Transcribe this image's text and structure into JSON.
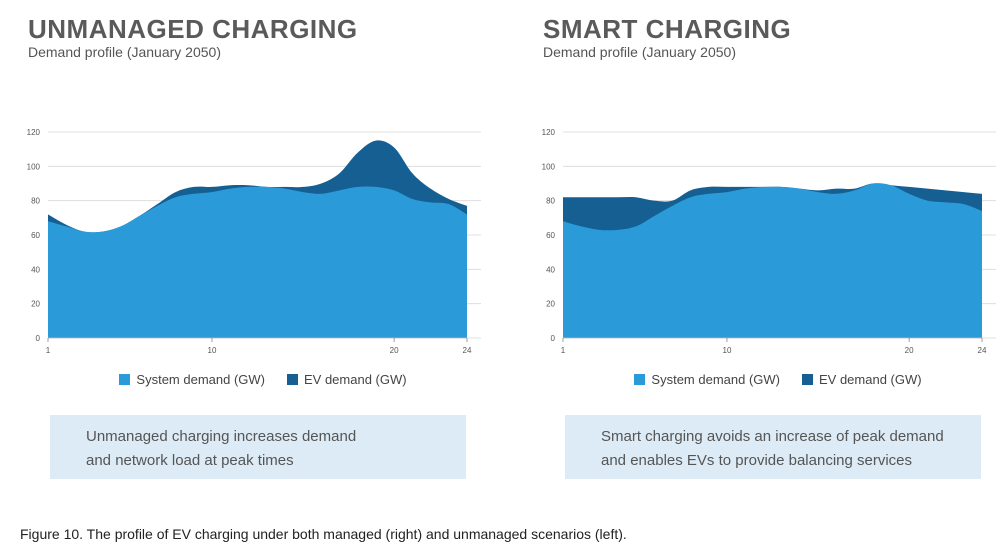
{
  "colors": {
    "system_demand": "#2b9ad9",
    "ev_demand": "#155f93",
    "gridline": "#d9d9d9",
    "note_background": "#dcebf5"
  },
  "panels": [
    {
      "title": "UNMANAGED CHARGING",
      "subtitle": "Demand profile (January 2050)",
      "note": [
        "Unmanaged charging increases demand",
        "and network load at peak times"
      ]
    },
    {
      "title": "SMART CHARGING",
      "subtitle": "Demand profile (January 2050)",
      "note": [
        "Smart charging avoids an increase of peak demand",
        "and enables EVs to provide balancing services"
      ]
    }
  ],
  "legend": {
    "system_label": "System demand (GW)",
    "ev_label": "EV demand (GW)"
  },
  "caption": {
    "label": "Figure 10.",
    "text": " The profile of EV charging under both managed (right) and unmanaged scenarios (left)."
  },
  "chart_data": [
    {
      "type": "area",
      "stacked": true,
      "title": "UNMANAGED CHARGING",
      "xlabel": "",
      "ylabel": "",
      "x": [
        1,
        2,
        3,
        4,
        5,
        6,
        7,
        8,
        9,
        10,
        11,
        12,
        13,
        14,
        15,
        16,
        17,
        18,
        19,
        20,
        21,
        22,
        23,
        24
      ],
      "xticks": [
        1,
        10,
        20,
        24
      ],
      "yticks": [
        0,
        20,
        40,
        60,
        80,
        100,
        120
      ],
      "xlim": [
        1,
        24
      ],
      "ylim": [
        0,
        120
      ],
      "grid": true,
      "legend_position": "bottom",
      "series": [
        {
          "name": "System demand (GW)",
          "values": [
            68,
            65,
            62,
            62,
            65,
            71,
            77,
            82,
            84,
            85,
            87,
            88,
            88,
            87,
            85,
            84,
            86,
            88,
            88,
            86,
            81,
            79,
            78,
            72
          ]
        },
        {
          "name": "EV demand (GW)",
          "values": [
            4,
            1,
            0,
            0,
            0,
            0,
            1,
            3,
            4,
            3,
            2,
            1,
            0,
            1,
            3,
            6,
            10,
            20,
            27,
            25,
            15,
            8,
            3,
            5
          ]
        }
      ]
    },
    {
      "type": "area",
      "stacked": true,
      "title": "SMART CHARGING",
      "xlabel": "",
      "ylabel": "",
      "x": [
        1,
        2,
        3,
        4,
        5,
        6,
        7,
        8,
        9,
        10,
        11,
        12,
        13,
        14,
        15,
        16,
        17,
        18,
        19,
        20,
        21,
        22,
        23,
        24
      ],
      "xticks": [
        1,
        10,
        20,
        24
      ],
      "yticks": [
        0,
        20,
        40,
        60,
        80,
        100,
        120
      ],
      "xlim": [
        1,
        24
      ],
      "ylim": [
        0,
        120
      ],
      "grid": true,
      "legend_position": "bottom",
      "series": [
        {
          "name": "System demand (GW)",
          "values": [
            68,
            65,
            63,
            63,
            65,
            71,
            77,
            82,
            84,
            85,
            87,
            88,
            88,
            87,
            85,
            84,
            86,
            90,
            89,
            84,
            80,
            79,
            78,
            74
          ]
        },
        {
          "name": "EV demand (GW)",
          "values": [
            14,
            17,
            19,
            19,
            17,
            9,
            3,
            4,
            4,
            3,
            1,
            0,
            0,
            0,
            1,
            3,
            1,
            0,
            0,
            4,
            7,
            7,
            7,
            10
          ]
        }
      ]
    }
  ]
}
